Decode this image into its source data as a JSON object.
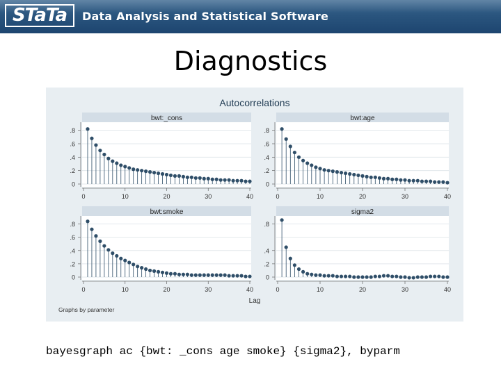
{
  "header": {
    "logo_text": "STaTa",
    "tagline": "Data Analysis and Statistical Software"
  },
  "slide": {
    "title": "Diagnostics",
    "command": "bayesgraph ac {bwt: _cons age smoke} {sigma2}, byparm"
  },
  "colors": {
    "banner": "#2a557e",
    "chart_bg": "#e8eef2",
    "panel_header": "#d3dde6",
    "marker": "#2f4e68",
    "stem": "#2f4e68"
  },
  "chart_data": {
    "type": "scatter",
    "style": "dropline",
    "title": "Autocorrelations",
    "xlabel": "Lag",
    "note": "Graphs by parameter",
    "xlim": [
      0,
      40
    ],
    "xticks": [
      0,
      10,
      20,
      30,
      40
    ],
    "grid": true,
    "panels": [
      {
        "name": "bwt:_cons",
        "yticks": [
          0,
          0.2,
          0.4,
          0.6,
          0.8
        ],
        "ytick_labels": [
          "0",
          ".2",
          ".4",
          ".6",
          ".8"
        ],
        "ylim": [
          0,
          0.9
        ],
        "lags": [
          1,
          2,
          3,
          4,
          5,
          6,
          7,
          8,
          9,
          10,
          11,
          12,
          13,
          14,
          15,
          16,
          17,
          18,
          19,
          20,
          21,
          22,
          23,
          24,
          25,
          26,
          27,
          28,
          29,
          30,
          31,
          32,
          33,
          34,
          35,
          36,
          37,
          38,
          39,
          40
        ],
        "values": [
          0.82,
          0.68,
          0.58,
          0.5,
          0.44,
          0.38,
          0.34,
          0.31,
          0.28,
          0.26,
          0.24,
          0.22,
          0.21,
          0.2,
          0.19,
          0.18,
          0.17,
          0.16,
          0.15,
          0.14,
          0.13,
          0.12,
          0.12,
          0.11,
          0.1,
          0.1,
          0.09,
          0.09,
          0.08,
          0.08,
          0.07,
          0.07,
          0.06,
          0.06,
          0.06,
          0.05,
          0.05,
          0.05,
          0.04,
          0.04
        ]
      },
      {
        "name": "bwt:age",
        "yticks": [
          0,
          0.2,
          0.4,
          0.6,
          0.8
        ],
        "ytick_labels": [
          "0",
          ".2",
          ".4",
          ".6",
          ".8"
        ],
        "ylim": [
          0,
          0.9
        ],
        "lags": [
          1,
          2,
          3,
          4,
          5,
          6,
          7,
          8,
          9,
          10,
          11,
          12,
          13,
          14,
          15,
          16,
          17,
          18,
          19,
          20,
          21,
          22,
          23,
          24,
          25,
          26,
          27,
          28,
          29,
          30,
          31,
          32,
          33,
          34,
          35,
          36,
          37,
          38,
          39,
          40
        ],
        "values": [
          0.82,
          0.67,
          0.56,
          0.47,
          0.4,
          0.35,
          0.31,
          0.28,
          0.25,
          0.23,
          0.21,
          0.2,
          0.19,
          0.18,
          0.17,
          0.16,
          0.15,
          0.14,
          0.13,
          0.12,
          0.11,
          0.1,
          0.1,
          0.09,
          0.08,
          0.08,
          0.07,
          0.07,
          0.06,
          0.06,
          0.05,
          0.05,
          0.05,
          0.04,
          0.04,
          0.04,
          0.03,
          0.03,
          0.03,
          0.02
        ]
      },
      {
        "name": "bwt:smoke",
        "yticks": [
          0,
          0.2,
          0.4,
          0.6,
          0.8
        ],
        "ytick_labels": [
          "0",
          ".2",
          ".4",
          ".6",
          ".8"
        ],
        "ylim": [
          0,
          0.9
        ],
        "lags": [
          1,
          2,
          3,
          4,
          5,
          6,
          7,
          8,
          9,
          10,
          11,
          12,
          13,
          14,
          15,
          16,
          17,
          18,
          19,
          20,
          21,
          22,
          23,
          24,
          25,
          26,
          27,
          28,
          29,
          30,
          31,
          32,
          33,
          34,
          35,
          36,
          37,
          38,
          39,
          40
        ],
        "values": [
          0.84,
          0.72,
          0.62,
          0.54,
          0.47,
          0.41,
          0.36,
          0.32,
          0.28,
          0.25,
          0.22,
          0.19,
          0.16,
          0.14,
          0.12,
          0.1,
          0.09,
          0.08,
          0.07,
          0.06,
          0.05,
          0.05,
          0.04,
          0.04,
          0.04,
          0.03,
          0.03,
          0.03,
          0.03,
          0.03,
          0.03,
          0.03,
          0.03,
          0.03,
          0.02,
          0.02,
          0.02,
          0.02,
          0.01,
          0.01
        ]
      },
      {
        "name": "sigma2",
        "yticks": [
          0,
          0.2,
          0.4,
          0.6,
          0.8
        ],
        "ytick_labels": [
          "0",
          ".2",
          ".4",
          "",
          ".8"
        ],
        "ylim": [
          0,
          0.9
        ],
        "lags": [
          1,
          2,
          3,
          4,
          5,
          6,
          7,
          8,
          9,
          10,
          11,
          12,
          13,
          14,
          15,
          16,
          17,
          18,
          19,
          20,
          21,
          22,
          23,
          24,
          25,
          26,
          27,
          28,
          29,
          30,
          31,
          32,
          33,
          34,
          35,
          36,
          37,
          38,
          39,
          40
        ],
        "values": [
          0.86,
          0.45,
          0.28,
          0.18,
          0.12,
          0.08,
          0.05,
          0.04,
          0.03,
          0.03,
          0.02,
          0.02,
          0.02,
          0.01,
          0.01,
          0.01,
          0.01,
          0.0,
          0.0,
          0.0,
          0.0,
          0.0,
          0.01,
          0.01,
          0.02,
          0.02,
          0.01,
          0.01,
          0.0,
          0.0,
          -0.01,
          -0.01,
          0.0,
          0.0,
          0.0,
          0.01,
          0.01,
          0.01,
          0.0,
          0.0
        ]
      }
    ]
  }
}
